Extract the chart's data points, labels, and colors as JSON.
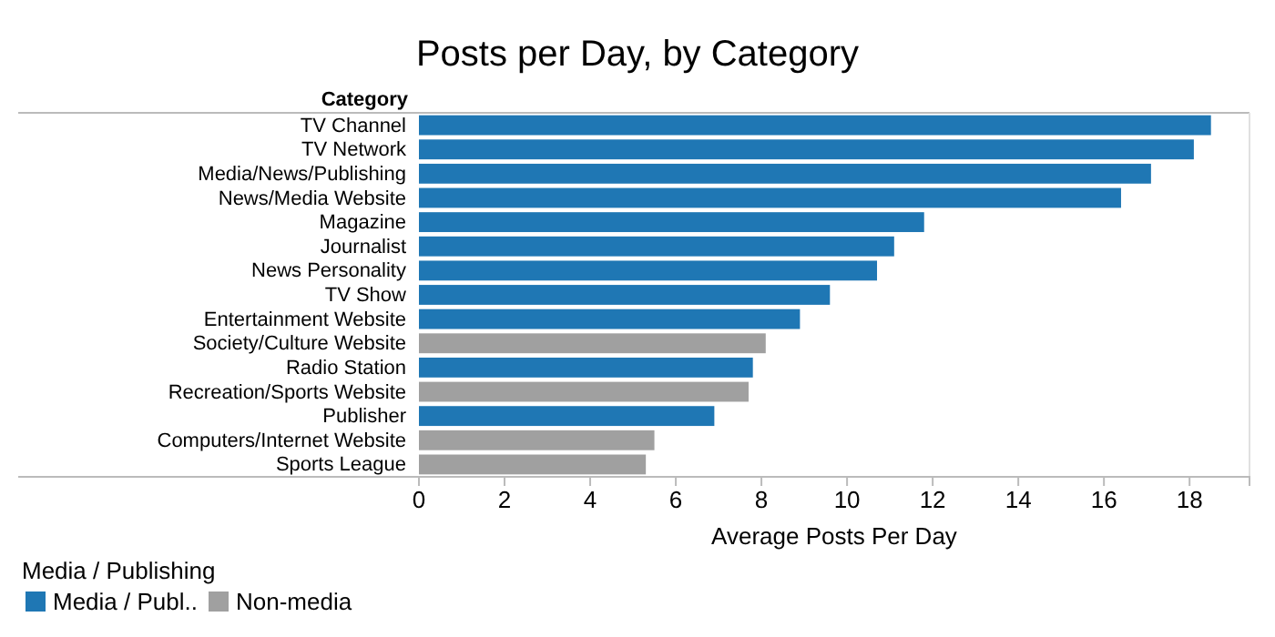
{
  "chart_data": {
    "type": "bar",
    "orientation": "horizontal",
    "title": "Posts per Day, by Category",
    "ylabel": "Category",
    "xlabel": "Average Posts Per Day",
    "legend_title": "Media / Publishing",
    "legend": "bottom left",
    "grid": false,
    "categories": [
      "TV Channel",
      "TV Network",
      "Media/News/Publishing",
      "News/Media Website",
      "Magazine",
      "Journalist",
      "News Personality",
      "TV Show",
      "Entertainment Website",
      "Society/Culture Website",
      "Radio Station",
      "Recreation/Sports Website",
      "Publisher",
      "Computers/Internet Website",
      "Sports League"
    ],
    "series": [
      {
        "name": "Media / Publ..",
        "color": "#1f77b4",
        "values": [
          18.5,
          18.1,
          17.1,
          16.4,
          11.8,
          11.1,
          10.7,
          9.6,
          8.9,
          null,
          7.8,
          null,
          6.9,
          null,
          null
        ]
      },
      {
        "name": "Non-media",
        "color": "#a0a0a0",
        "values": [
          null,
          null,
          null,
          null,
          null,
          null,
          null,
          null,
          null,
          8.1,
          null,
          7.7,
          null,
          5.5,
          5.3
        ]
      }
    ],
    "xlim": [
      0,
      19.4
    ],
    "xticks": [
      0,
      2,
      4,
      6,
      8,
      10,
      12,
      14,
      16,
      18
    ]
  }
}
